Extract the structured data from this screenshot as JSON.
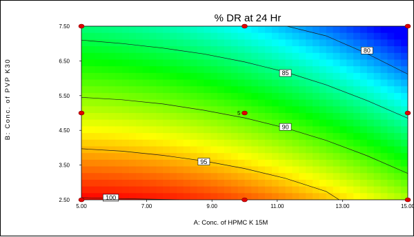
{
  "chart_data": {
    "type": "heatmap",
    "title": "% DR at 24 Hr",
    "xlabel": "A: Conc. of HPMC K 15M",
    "ylabel": "B: Conc. of PVP K30",
    "xlim": [
      5.0,
      15.0
    ],
    "ylim": [
      2.5,
      7.5
    ],
    "x_ticks": [
      "5.00",
      "7.00",
      "9.00",
      "11.00",
      "13.00",
      "15.00"
    ],
    "y_ticks": [
      "2.50",
      "3.50",
      "4.50",
      "5.50",
      "6.50",
      "7.50"
    ],
    "x_tick_values": [
      5,
      7,
      9,
      11,
      13,
      15
    ],
    "y_tick_values": [
      2.5,
      3.5,
      4.5,
      5.5,
      6.5,
      7.5
    ],
    "grid": false,
    "color_scale": {
      "high": "#ff0000",
      "mid_high": "#ffff00",
      "mid": "#00ff00",
      "mid_low": "#00ffff",
      "low": "#0000ff"
    },
    "contours": [
      {
        "level": "100",
        "points": [
          [
            5.0,
            2.56
          ],
          [
            6.5,
            2.53
          ],
          [
            8.0,
            2.5
          ]
        ],
        "label_at": [
          5.9,
          2.56
        ]
      },
      {
        "level": "95",
        "points": [
          [
            5.0,
            3.97
          ],
          [
            6.25,
            3.9
          ],
          [
            7.5,
            3.78
          ],
          [
            8.75,
            3.62
          ],
          [
            10.0,
            3.4
          ],
          [
            11.25,
            3.12
          ],
          [
            12.5,
            2.74
          ],
          [
            12.9,
            2.5
          ]
        ],
        "label_at": [
          8.75,
          3.6
        ]
      },
      {
        "level": "90",
        "points": [
          [
            5.0,
            5.45
          ],
          [
            6.25,
            5.38
          ],
          [
            7.5,
            5.26
          ],
          [
            8.75,
            5.08
          ],
          [
            10.0,
            4.86
          ],
          [
            11.25,
            4.57
          ],
          [
            12.5,
            4.21
          ],
          [
            13.75,
            3.77
          ],
          [
            15.0,
            3.26
          ]
        ],
        "label_at": [
          11.25,
          4.6
        ]
      },
      {
        "level": "85",
        "points": [
          [
            5.0,
            7.1
          ],
          [
            6.25,
            7.0
          ],
          [
            7.5,
            6.87
          ],
          [
            8.75,
            6.7
          ],
          [
            10.0,
            6.47
          ],
          [
            11.25,
            6.18
          ],
          [
            12.5,
            5.81
          ],
          [
            13.75,
            5.36
          ],
          [
            15.0,
            4.85
          ]
        ],
        "label_at": [
          11.25,
          6.15
        ]
      },
      {
        "level": "80",
        "points": [
          [
            11.3,
            7.5
          ],
          [
            12.5,
            7.22
          ],
          [
            13.75,
            6.71
          ],
          [
            15.0,
            6.12
          ]
        ],
        "label_at": [
          13.75,
          6.8
        ]
      }
    ],
    "design_points": [
      {
        "x": 5.0,
        "y": 2.5
      },
      {
        "x": 10.0,
        "y": 2.5
      },
      {
        "x": 15.0,
        "y": 2.5
      },
      {
        "x": 5.0,
        "y": 5.0
      },
      {
        "x": 10.0,
        "y": 5.0,
        "label": "5"
      },
      {
        "x": 15.0,
        "y": 5.0
      },
      {
        "x": 5.0,
        "y": 7.5
      },
      {
        "x": 10.0,
        "y": 7.5
      },
      {
        "x": 15.0,
        "y": 7.5
      }
    ]
  }
}
